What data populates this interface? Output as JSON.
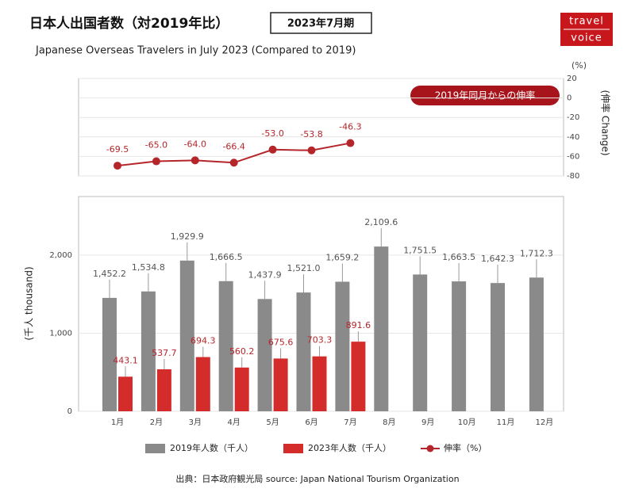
{
  "header": {
    "title": "日本人出国者数（対2019年比）",
    "badge": "2023年7月期",
    "subtitle": "Japanese Overseas Travelers in July 2023 (Compared to 2019)",
    "logo_top": "travel",
    "logo_bottom": "voice"
  },
  "source": "出典：日本政府観光局  source: Japan National Tourism Organization",
  "chart_data": [
    {
      "type": "line",
      "ylim": [
        -80,
        20
      ],
      "yticks": [
        20,
        0,
        -20,
        -40,
        -60,
        -80
      ],
      "y_unit": "(%)",
      "ylabel": "(伸率 Change)",
      "annotation": "2019年同月からの伸率",
      "grid": true,
      "series": [
        {
          "name": "伸率（%）",
          "color": "#b5262b",
          "values": [
            -69.5,
            -65.0,
            -64.0,
            -66.4,
            -53.0,
            -53.8,
            -46.3
          ],
          "value_labels": [
            "-69.5",
            "-65.0",
            "-64.0",
            "-66.4",
            "-53.0",
            "-53.8",
            "-46.3"
          ]
        }
      ]
    },
    {
      "type": "bar",
      "categories": [
        "1月",
        "2月",
        "3月",
        "4月",
        "5月",
        "6月",
        "7月",
        "8月",
        "9月",
        "10月",
        "11月",
        "12月"
      ],
      "ylim": [
        0,
        2750
      ],
      "yticks": [
        0,
        {
          "value": 1000,
          "label": "1,000"
        },
        {
          "value": 2000,
          "label": "2,000"
        }
      ],
      "ylabel": "(千人 thousand)",
      "grid": true,
      "series": [
        {
          "name": "2019年人数（千人）",
          "color": "#8a8a8a",
          "values": [
            1452.2,
            1534.8,
            1929.9,
            1666.5,
            1437.9,
            1521.0,
            1659.2,
            2109.6,
            1751.5,
            1663.5,
            1642.3,
            1712.3
          ],
          "value_labels": [
            "1,452.2",
            "1,534.8",
            "1,929.9",
            "1,666.5",
            "1,437.9",
            "1,521.0",
            "1,659.2",
            "2,109.6",
            "1,751.5",
            "1,663.5",
            "1,642.3",
            "1,712.3"
          ]
        },
        {
          "name": "2023年人数（千人）",
          "color": "#d42b2b",
          "values": [
            443.1,
            537.7,
            694.3,
            560.2,
            675.6,
            703.3,
            891.6,
            null,
            null,
            null,
            null,
            null
          ]
        }
      ]
    }
  ]
}
